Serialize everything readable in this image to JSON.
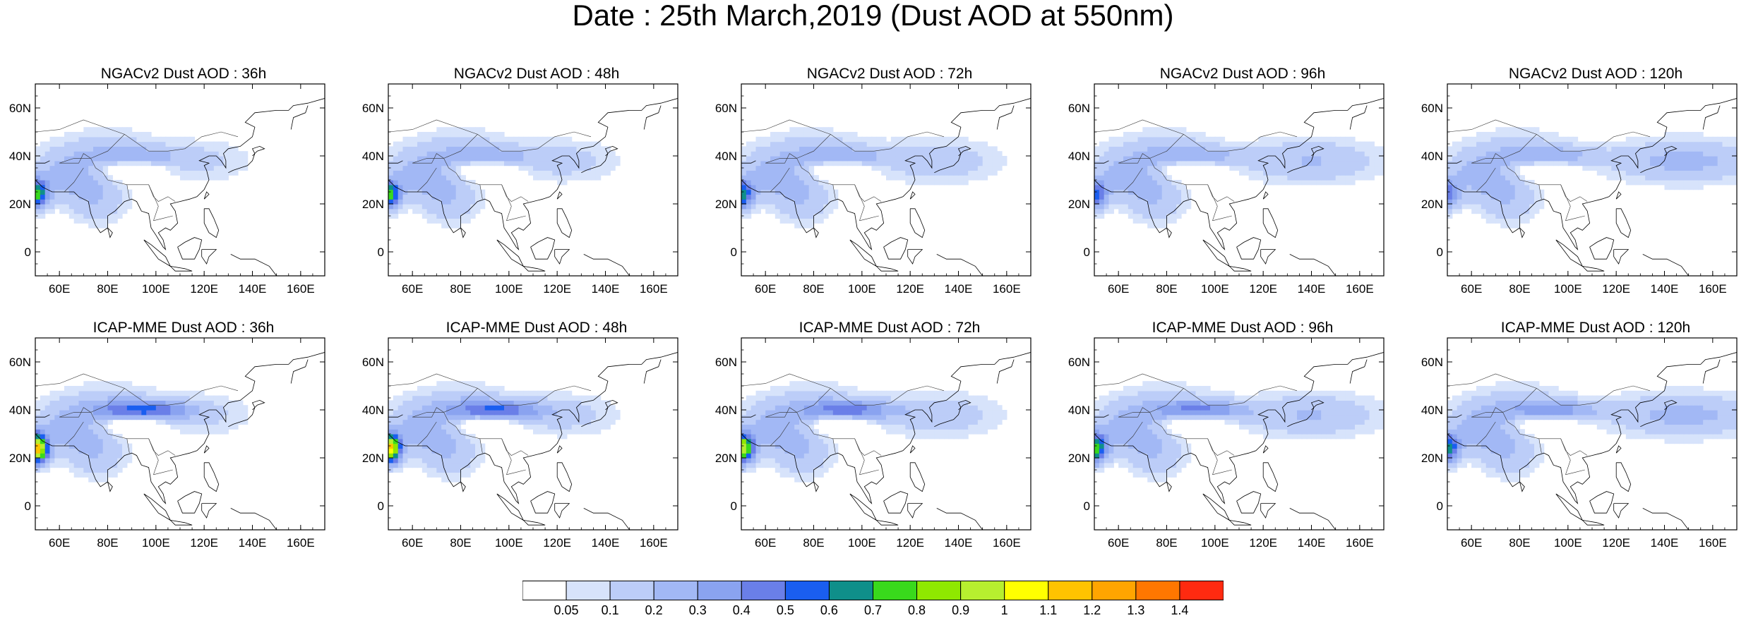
{
  "title": "Date : 25th March,2019 (Dust AOD at 550nm)",
  "map": {
    "lon_range": [
      50,
      170
    ],
    "lat_range": [
      -10,
      70
    ],
    "lon_ticks": [
      "60E",
      "80E",
      "100E",
      "120E",
      "140E",
      "160E"
    ],
    "lat_ticks": [
      "0",
      "20N",
      "40N",
      "60N"
    ]
  },
  "panels": [
    {
      "title": "NGACv2 Dust AOD : 36h",
      "model": "ngac",
      "lead": 36
    },
    {
      "title": "NGACv2 Dust AOD : 48h",
      "model": "ngac",
      "lead": 48
    },
    {
      "title": "NGACv2 Dust AOD : 72h",
      "model": "ngac",
      "lead": 72
    },
    {
      "title": "NGACv2 Dust AOD : 96h",
      "model": "ngac",
      "lead": 96
    },
    {
      "title": "NGACv2 Dust AOD : 120h",
      "model": "ngac",
      "lead": 120
    },
    {
      "title": "ICAP-MME Dust AOD : 36h",
      "model": "icap",
      "lead": 36
    },
    {
      "title": "ICAP-MME Dust AOD : 48h",
      "model": "icap",
      "lead": 48
    },
    {
      "title": "ICAP-MME Dust AOD : 72h",
      "model": "icap",
      "lead": 72
    },
    {
      "title": "ICAP-MME Dust AOD : 96h",
      "model": "icap",
      "lead": 96
    },
    {
      "title": "ICAP-MME Dust AOD : 120h",
      "model": "icap",
      "lead": 120
    }
  ],
  "colorbar": {
    "labels": [
      "0.05",
      "0.1",
      "0.2",
      "0.3",
      "0.4",
      "0.5",
      "0.6",
      "0.7",
      "0.8",
      "0.9",
      "1",
      "1.1",
      "1.2",
      "1.3",
      "1.4"
    ],
    "colors": [
      "#ffffff",
      "#d7e3fb",
      "#bccdf8",
      "#a2b8f5",
      "#8aa3f0",
      "#6a7fe8",
      "#1a5ef0",
      "#0f8f8a",
      "#39d91c",
      "#8fe800",
      "#b7ef2f",
      "#ffff00",
      "#ffc300",
      "#ffa500",
      "#ff7700",
      "#ff2a10"
    ]
  }
}
